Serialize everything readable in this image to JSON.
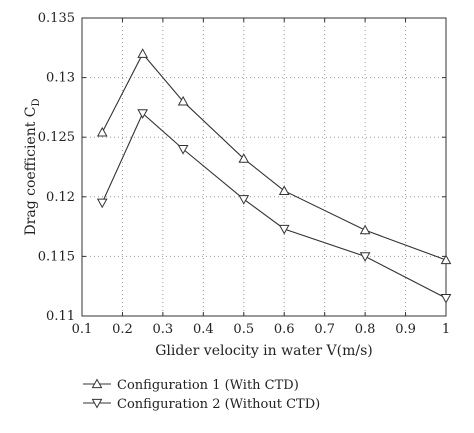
{
  "chart_data": {
    "type": "line",
    "title": "",
    "xlabel": "Glider velocity in water V(m/s)",
    "ylabel": "Drag coefficient C",
    "ylabel_subscript": "D",
    "xlim": [
      0.1,
      1.0
    ],
    "ylim": [
      0.11,
      0.135
    ],
    "xticks": [
      0.1,
      0.2,
      0.3,
      0.4,
      0.5,
      0.6,
      0.7,
      0.8,
      0.9,
      1.0
    ],
    "xtick_labels": [
      "0.1",
      "0.2",
      "0.3",
      "0.4",
      "0.5",
      "0.6",
      "0.7",
      "0.8",
      "0.9",
      "1"
    ],
    "yticks": [
      0.11,
      0.115,
      0.12,
      0.125,
      0.13,
      0.135
    ],
    "ytick_labels": [
      "0.11",
      "0.115",
      "0.12",
      "0.125",
      "0.13",
      "0.135"
    ],
    "grid": true,
    "grid_style": "dotted",
    "legend_position": "below plot",
    "series": [
      {
        "name": "Configuration 1 (With CTD)",
        "marker": "triangle-up",
        "color": "#333333",
        "x": [
          0.15,
          0.25,
          0.35,
          0.5,
          0.6,
          0.8,
          1.0
        ],
        "y": [
          0.1254,
          0.132,
          0.128,
          0.1232,
          0.1205,
          0.1172,
          0.1147
        ]
      },
      {
        "name": "Configuration 2 (Without CTD)",
        "marker": "triangle-down",
        "color": "#333333",
        "x": [
          0.15,
          0.25,
          0.35,
          0.5,
          0.6,
          0.8,
          1.0
        ],
        "y": [
          0.1195,
          0.127,
          0.124,
          0.1198,
          0.1173,
          0.115,
          0.1115
        ]
      }
    ]
  }
}
